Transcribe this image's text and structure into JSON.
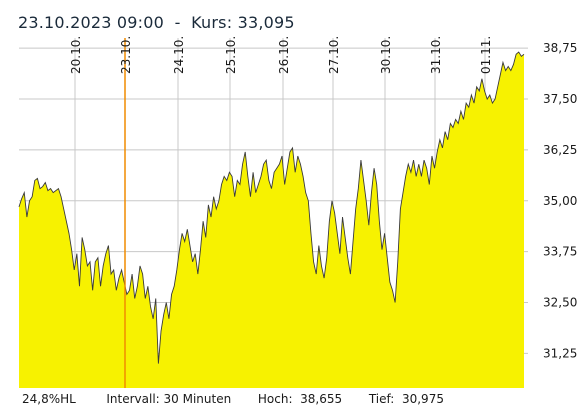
{
  "header": {
    "datetime": "23.10.2023 09:00",
    "separator": "  -  ",
    "price_label": "Kurs:",
    "price_value": "33,095"
  },
  "footer": {
    "hl": "24,8%HL",
    "interval": "Intervall: 30 Minuten",
    "high": "Hoch:  38,655",
    "low": "Tief:  30,975"
  },
  "colors": {
    "fill": "#f7f200",
    "line": "#3a3a3a",
    "grid": "#c8c8c8",
    "marker": "#f08c00"
  },
  "chart_data": {
    "type": "area",
    "title": "",
    "xlabel": "",
    "ylabel": "",
    "ylim": [
      30.4,
      39.0
    ],
    "y_ticks": [
      "38,75",
      "37,50",
      "36,25",
      "35,00",
      "33,75",
      "32,50",
      "31,25"
    ],
    "x_ticks": [
      "20.10.",
      "23.10.",
      "24.10.",
      "25.10.",
      "26.10.",
      "27.10.",
      "30.10.",
      "31.10.",
      "01.11."
    ],
    "marker_date": "23.10.",
    "marker_value": 33.095,
    "grid": true,
    "series": [
      {
        "values": [
          34.85,
          35.05,
          35.2,
          34.6,
          35.0,
          35.1,
          35.5,
          35.55,
          35.3,
          35.35,
          35.45,
          35.25,
          35.3,
          35.2,
          35.25,
          35.3,
          35.1,
          34.8,
          34.5,
          34.2,
          33.8,
          33.3,
          33.7,
          32.9,
          34.1,
          33.8,
          33.4,
          33.5,
          32.8,
          33.5,
          33.6,
          32.9,
          33.4,
          33.7,
          33.9,
          33.2,
          33.3,
          32.8,
          33.1,
          33.3,
          33.0,
          32.7,
          32.8,
          33.2,
          32.6,
          32.9,
          33.4,
          33.2,
          32.6,
          32.9,
          32.4,
          32.1,
          32.6,
          31.0,
          31.8,
          32.2,
          32.5,
          32.1,
          32.7,
          32.9,
          33.3,
          33.8,
          34.2,
          34.0,
          34.3,
          33.9,
          33.5,
          33.7,
          33.2,
          33.8,
          34.5,
          34.1,
          34.9,
          34.6,
          35.1,
          34.8,
          35.0,
          35.4,
          35.6,
          35.5,
          35.7,
          35.6,
          35.1,
          35.5,
          35.4,
          35.9,
          36.2,
          35.6,
          35.1,
          35.7,
          35.2,
          35.4,
          35.6,
          35.9,
          36.0,
          35.5,
          35.3,
          35.7,
          35.8,
          35.9,
          36.1,
          35.4,
          35.8,
          36.2,
          36.3,
          35.7,
          36.1,
          35.9,
          35.6,
          35.2,
          35.0,
          34.2,
          33.5,
          33.2,
          33.9,
          33.4,
          33.1,
          33.6,
          34.5,
          35.0,
          34.7,
          34.2,
          33.7,
          34.6,
          34.1,
          33.6,
          33.2,
          34.0,
          34.8,
          35.3,
          36.0,
          35.5,
          35.0,
          34.4,
          35.2,
          35.8,
          35.4,
          34.5,
          33.8,
          34.2,
          33.6,
          33.0,
          32.8,
          32.5,
          33.5,
          34.8,
          35.2,
          35.6,
          35.9,
          35.7,
          36.0,
          35.6,
          35.9,
          35.6,
          36.0,
          35.8,
          35.4,
          36.1,
          35.8,
          36.2,
          36.5,
          36.3,
          36.7,
          36.5,
          36.9,
          36.8,
          37.0,
          36.9,
          37.2,
          37.0,
          37.4,
          37.3,
          37.6,
          37.4,
          37.8,
          37.7,
          38.0,
          37.7,
          37.5,
          37.6,
          37.4,
          37.5,
          37.8,
          38.1,
          38.4,
          38.2,
          38.3,
          38.2,
          38.35,
          38.6,
          38.655,
          38.55,
          38.6
        ]
      }
    ]
  }
}
